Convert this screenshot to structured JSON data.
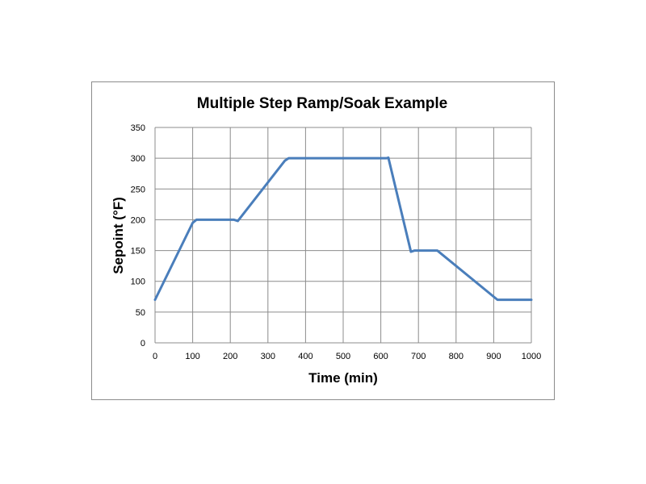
{
  "chart_data": {
    "type": "line",
    "title": "Multiple Step Ramp/Soak Example",
    "xlabel": "Time (min)",
    "ylabel": "Sepoint (°F)",
    "xlim": [
      0,
      1000
    ],
    "ylim": [
      0,
      350
    ],
    "xticks": [
      "0",
      "100",
      "200",
      "300",
      "400",
      "500",
      "600",
      "700",
      "800",
      "900",
      "1000"
    ],
    "yticks": [
      "0",
      "50",
      "100",
      "150",
      "200",
      "250",
      "300",
      "350"
    ],
    "grid": true,
    "legend": "none",
    "series": [
      {
        "color": "#4a7ebb",
        "x": [
          0,
          100,
          110,
          210,
          220,
          345,
          355,
          615,
          620,
          680,
          690,
          750,
          910,
          920,
          1000
        ],
        "y": [
          70,
          195,
          200,
          200,
          198,
          296,
          300,
          300,
          301,
          148,
          150,
          150,
          70,
          70,
          70
        ]
      }
    ]
  }
}
